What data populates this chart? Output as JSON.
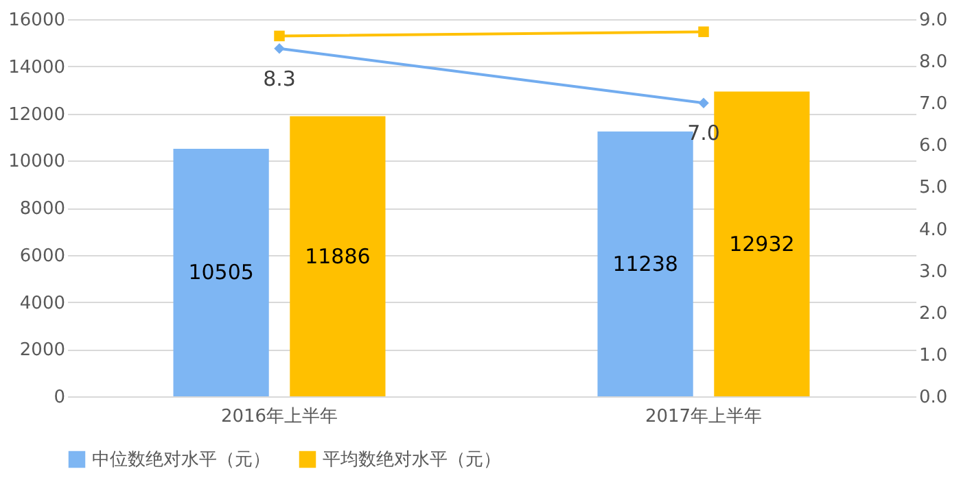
{
  "chart_data": {
    "type": "bar",
    "categories": [
      "2016年上半年",
      "2017年上半年"
    ],
    "series": [
      {
        "name": "中位数绝对水平（元）",
        "color": "#7eb6f3",
        "values": [
          10505,
          11238
        ],
        "value_labels": [
          "10505",
          "11238"
        ]
      },
      {
        "name": "平均数绝对水平（元）",
        "color": "#ffc000",
        "values": [
          11886,
          12932
        ],
        "value_labels": [
          "11886",
          "12932"
        ]
      },
      {
        "type": "line",
        "axis": "y2",
        "color": "#72acef",
        "marker": "diamond",
        "values": [
          8.3,
          7.0
        ],
        "value_labels": [
          "8.3",
          "7.0"
        ]
      },
      {
        "type": "line",
        "axis": "y2",
        "color": "#ffc000",
        "marker": "square",
        "values": [
          8.6,
          8.7
        ]
      }
    ],
    "ylim": [
      0,
      16000
    ],
    "yticks": [
      0,
      2000,
      4000,
      6000,
      8000,
      10000,
      12000,
      14000,
      16000
    ],
    "y2lim": [
      0,
      9
    ],
    "y2ticks": [
      {
        "value": 0,
        "label": "0.0"
      },
      {
        "value": 1,
        "label": "1.0"
      },
      {
        "value": 2,
        "label": "2.0"
      },
      {
        "value": 3,
        "label": "3.0"
      },
      {
        "value": 4,
        "label": "4.0"
      },
      {
        "value": 5,
        "label": "5.0"
      },
      {
        "value": 6,
        "label": "6.0"
      },
      {
        "value": 7,
        "label": "7.0"
      },
      {
        "value": 8,
        "label": "8.0"
      },
      {
        "value": 9,
        "label": "9.0"
      }
    ],
    "grid": "y",
    "legend": "bottom"
  }
}
